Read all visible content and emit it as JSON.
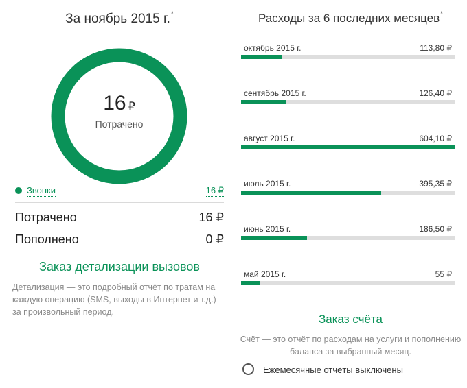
{
  "left": {
    "title": "За ноябрь 2015 г.",
    "title_mark": "*",
    "donut": {
      "amount": "16",
      "currency": "₽",
      "label": "Потрачено",
      "share": 1.0
    },
    "legend": {
      "label": "Звонки",
      "value": "16 ₽"
    },
    "summary": [
      {
        "label": "Потрачено",
        "value": "16 ₽"
      },
      {
        "label": "Пополнено",
        "value": "0 ₽"
      }
    ],
    "link": "Заказ детализации вызовов",
    "description": "Детализация — это подробный отчёт по тратам на каждую операцию (SMS, выходы в Интернет и т.д.) за произвольный период."
  },
  "right": {
    "title": "Расходы за 6 последних месяцев",
    "title_mark": "*",
    "months": [
      {
        "name": "октябрь 2015 г.",
        "value": "113,80 ₽",
        "amount": 113.8
      },
      {
        "name": "сентябрь 2015 г.",
        "value": "126,40 ₽",
        "amount": 126.4
      },
      {
        "name": "август 2015 г.",
        "value": "604,10 ₽",
        "amount": 604.1
      },
      {
        "name": "июль 2015 г.",
        "value": "395,35 ₽",
        "amount": 395.35
      },
      {
        "name": "июнь 2015 г.",
        "value": "186,50 ₽",
        "amount": 186.5
      },
      {
        "name": "май 2015 г.",
        "value": "55 ₽",
        "amount": 55
      }
    ],
    "link": "Заказ счёта",
    "description": "Счёт — это отчёт по расходам на услуги и пополнению баланса за выбранный месяц.",
    "monthly_reports_toggle": {
      "label": "Ежемесячные отчёты выключены",
      "checked": false
    }
  },
  "colors": {
    "accent": "#0a9258",
    "track": "#dedede",
    "muted_text": "#8a8a8a"
  }
}
